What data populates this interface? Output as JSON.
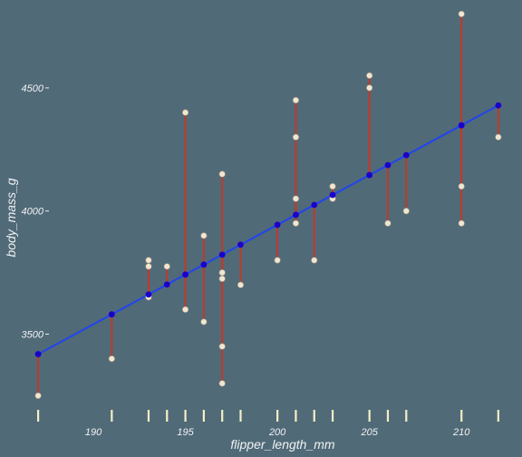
{
  "chart_data": {
    "type": "scatter",
    "title": "",
    "xlabel": "flipper_length_mm",
    "ylabel": "body_mass_g",
    "xlim": [
      186.7,
      212.5
    ],
    "ylim": [
      3200,
      4820
    ],
    "xticks": [
      190,
      195,
      200,
      205,
      210
    ],
    "yticks": [
      3500,
      4000,
      4500
    ],
    "grid": false,
    "legend": "none",
    "regression": {
      "slope": 40.4,
      "intercept": -4136
    },
    "points": [
      {
        "x": 187,
        "y": 3250
      },
      {
        "x": 191,
        "y": 3400
      },
      {
        "x": 193,
        "y": 3650
      },
      {
        "x": 193,
        "y": 3775
      },
      {
        "x": 193,
        "y": 3800
      },
      {
        "x": 194,
        "y": 3775
      },
      {
        "x": 195,
        "y": 3600
      },
      {
        "x": 195,
        "y": 4400
      },
      {
        "x": 196,
        "y": 3550
      },
      {
        "x": 196,
        "y": 3900
      },
      {
        "x": 197,
        "y": 3300
      },
      {
        "x": 197,
        "y": 3450
      },
      {
        "x": 197,
        "y": 3725
      },
      {
        "x": 197,
        "y": 3750
      },
      {
        "x": 197,
        "y": 4150
      },
      {
        "x": 198,
        "y": 3700
      },
      {
        "x": 200,
        "y": 3800
      },
      {
        "x": 201,
        "y": 3950
      },
      {
        "x": 201,
        "y": 4050
      },
      {
        "x": 201,
        "y": 4300
      },
      {
        "x": 201,
        "y": 4450
      },
      {
        "x": 202,
        "y": 3800
      },
      {
        "x": 203,
        "y": 4050
      },
      {
        "x": 203,
        "y": 4100
      },
      {
        "x": 205,
        "y": 4500
      },
      {
        "x": 205,
        "y": 4550
      },
      {
        "x": 206,
        "y": 3950
      },
      {
        "x": 207,
        "y": 4000
      },
      {
        "x": 210,
        "y": 3950
      },
      {
        "x": 210,
        "y": 4100
      },
      {
        "x": 210,
        "y": 4800
      },
      {
        "x": 212,
        "y": 4300
      }
    ]
  },
  "colors": {
    "background": "#506a78",
    "points": "#f0e6d2",
    "residual_lines": "#c0392b",
    "regression_line": "#2244ee",
    "fitted_points": "#1a00cc",
    "rug": "#f3f0c4",
    "text": "#f2f2f2"
  }
}
